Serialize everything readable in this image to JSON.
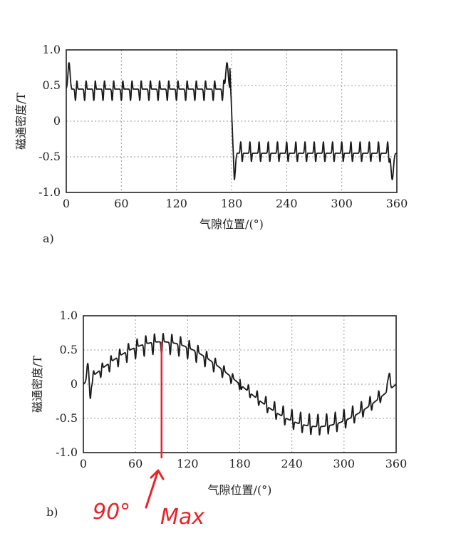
{
  "chart_data": [
    {
      "id": "a",
      "type": "line",
      "panel_label": "a)",
      "xlabel": "气隙位置/(°)",
      "ylabel": "磁通密度/T",
      "xlim": [
        0,
        360
      ],
      "ylim": [
        -1.0,
        1.0
      ],
      "xticks": [
        "0",
        "60",
        "120",
        "180",
        "240",
        "300",
        "360"
      ],
      "yticks": [
        "1.0",
        "0.5",
        "0",
        "-0.5",
        "-1.0"
      ],
      "grid": true,
      "waveform": "square",
      "amplitude": 0.45,
      "edge_peak": 0.82,
      "slot_dips": 18,
      "samples": [
        {
          "x": 0,
          "y": 0.55
        },
        {
          "x": 3,
          "y": 0.82
        },
        {
          "x": 8,
          "y": 0.42
        },
        {
          "x": 30,
          "y": 0.45
        },
        {
          "x": 90,
          "y": 0.45
        },
        {
          "x": 150,
          "y": 0.45
        },
        {
          "x": 175,
          "y": 0.82
        },
        {
          "x": 180,
          "y": 0.3
        },
        {
          "x": 183,
          "y": -0.82
        },
        {
          "x": 190,
          "y": -0.42
        },
        {
          "x": 270,
          "y": -0.45
        },
        {
          "x": 355,
          "y": -0.82
        },
        {
          "x": 360,
          "y": -0.6
        }
      ]
    },
    {
      "id": "b",
      "type": "line",
      "panel_label": "b)",
      "xlabel": "气隙位置/(°)",
      "ylabel": "磁通密度/T",
      "xlim": [
        0,
        360
      ],
      "ylim": [
        -1.0,
        1.0
      ],
      "xticks": [
        "0",
        "60",
        "120",
        "180",
        "240",
        "300",
        "360"
      ],
      "yticks": [
        "1.0",
        "0.5",
        "0",
        "-0.5",
        "-1.0"
      ],
      "grid": true,
      "waveform": "sine",
      "amplitude": 0.6,
      "slot_dips": 18,
      "samples": [
        {
          "x": 0,
          "y": 0.0
        },
        {
          "x": 5,
          "y": 0.2
        },
        {
          "x": 8,
          "y": -0.15
        },
        {
          "x": 45,
          "y": 0.3
        },
        {
          "x": 90,
          "y": 0.62
        },
        {
          "x": 135,
          "y": 0.35
        },
        {
          "x": 180,
          "y": 0.0
        },
        {
          "x": 225,
          "y": -0.35
        },
        {
          "x": 270,
          "y": -0.62
        },
        {
          "x": 315,
          "y": -0.35
        },
        {
          "x": 352,
          "y": 0.15
        },
        {
          "x": 360,
          "y": 0.0
        }
      ]
    }
  ],
  "annotation": {
    "text_angle": "90°",
    "text_max": "Max",
    "marker_x": 90,
    "color": "#e8232a"
  }
}
